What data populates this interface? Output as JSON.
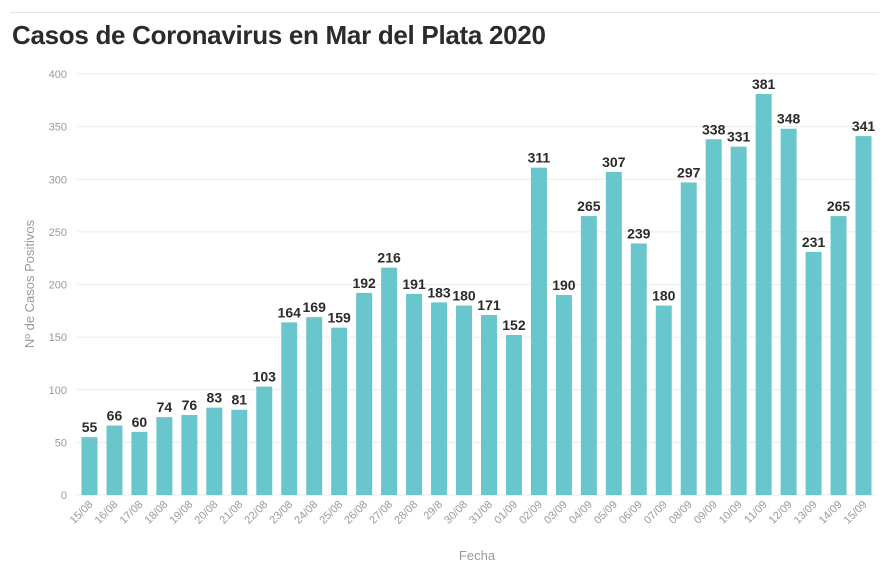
{
  "page_title": "Casos de Coronavirus en Mar del Plata 2020",
  "colors": {
    "bar": "#68c6cc",
    "grid": "#ebebeb",
    "text": "#2b2b2b",
    "axis_text": "#9a9a9a"
  },
  "chart_data": {
    "type": "bar",
    "title": "Casos de Coronavirus en Mar del Plata 2020",
    "xlabel": "Fecha",
    "ylabel": "Nº de Casos Positivos",
    "ylim": [
      0,
      400
    ],
    "yticks": [
      0,
      50,
      100,
      150,
      200,
      250,
      300,
      350,
      400
    ],
    "grid": true,
    "categories": [
      "15/08",
      "16/08",
      "17/08",
      "18/08",
      "19/08",
      "20/08",
      "21/08",
      "22/08",
      "23/08",
      "24/08",
      "25/08",
      "26/08",
      "27/08",
      "28/08",
      "29/8",
      "30/08",
      "31/08",
      "01/09",
      "02/09",
      "03/09",
      "04/09",
      "05/09",
      "06/09",
      "07/09",
      "08/09",
      "09/09",
      "10/09",
      "11/09",
      "12/09",
      "13/09",
      "14/09",
      "15/09"
    ],
    "values": [
      55,
      66,
      60,
      74,
      76,
      83,
      81,
      103,
      164,
      169,
      159,
      192,
      216,
      191,
      183,
      180,
      171,
      152,
      311,
      190,
      265,
      307,
      239,
      180,
      297,
      338,
      331,
      381,
      348,
      231,
      265,
      341
    ]
  }
}
